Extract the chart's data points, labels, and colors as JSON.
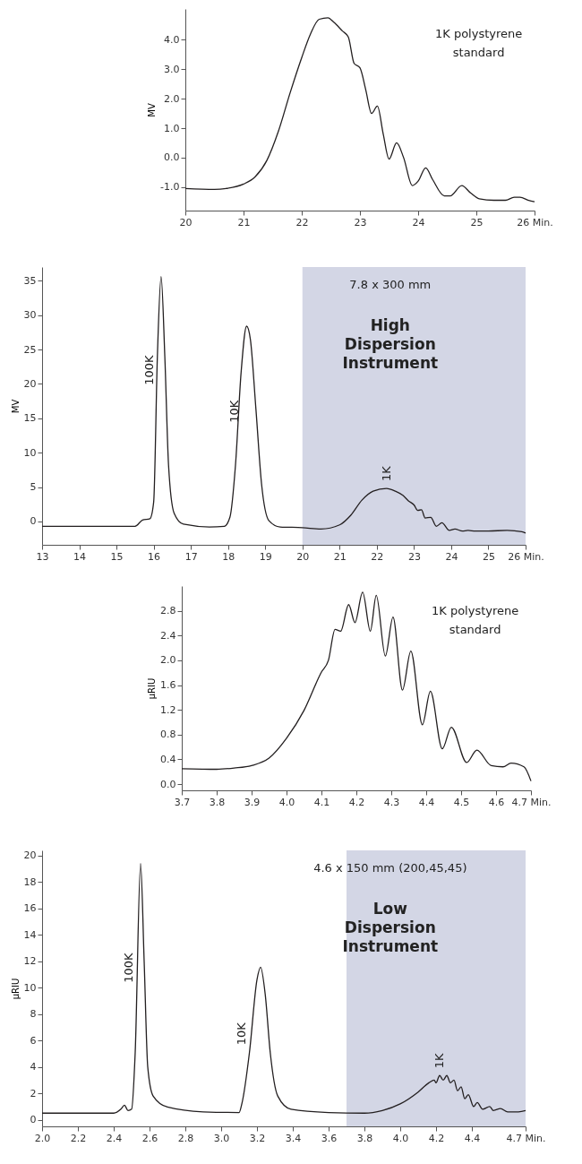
{
  "chart_data": [
    {
      "type": "line",
      "ylabel": "MV",
      "xlim": [
        20,
        26
      ],
      "ylim": [
        -1.8,
        5.05
      ],
      "grid": false,
      "xticks": [
        20,
        21,
        22,
        23,
        24,
        25,
        {
          "value": 26,
          "label": "26 Min."
        }
      ],
      "yticks": [
        {
          "value": -1,
          "label": "-1.0"
        },
        {
          "value": 0,
          "label": "0.0"
        },
        {
          "value": 1,
          "label": "1.0"
        },
        {
          "value": 2,
          "label": "2.0"
        },
        {
          "value": 3,
          "label": "3.0"
        },
        {
          "value": 4,
          "label": "4.0"
        }
      ],
      "x": [
        20,
        20.5,
        20.7,
        21,
        21.2,
        21.4,
        21.6,
        21.8,
        22,
        22.15,
        22.3,
        22.45,
        22.55,
        22.7,
        22.8,
        22.9,
        23.0,
        23.1,
        23.2,
        23.3,
        23.4,
        23.5,
        23.63,
        23.75,
        23.9,
        24,
        24.13,
        24.25,
        24.45,
        24.55,
        24.75,
        24.9,
        25.05,
        25.3,
        25.5,
        25.65,
        25.75,
        25.9,
        26
      ],
      "series": [
        {
          "color": "#231f20",
          "values": [
            -1.05,
            -1.08,
            -1.05,
            -0.9,
            -0.65,
            -0.1,
            0.9,
            2.2,
            3.4,
            4.2,
            4.7,
            4.75,
            4.6,
            4.3,
            4.1,
            3.2,
            3.05,
            2.3,
            1.5,
            1.75,
            0.8,
            -0.05,
            0.5,
            0.0,
            -0.95,
            -0.8,
            -0.35,
            -0.75,
            -1.3,
            -1.3,
            -0.95,
            -1.2,
            -1.4,
            -1.45,
            -1.45,
            -1.35,
            -1.35,
            -1.45,
            -1.5
          ]
        }
      ],
      "annotations": [
        "1K polystyrene standard"
      ]
    },
    {
      "type": "line",
      "ylabel": "MV",
      "xlim": [
        13,
        26
      ],
      "ylim": [
        -3.4,
        37
      ],
      "grid": false,
      "xticks": [
        13,
        14,
        15,
        16,
        17,
        18,
        19,
        20,
        21,
        22,
        23,
        24,
        25,
        {
          "value": 26,
          "label": "26 Min."
        }
      ],
      "yticks": [
        0,
        5,
        10,
        15,
        20,
        25,
        30,
        35
      ],
      "x": [
        13,
        15,
        15.5,
        15.7,
        15.9,
        16.0,
        16.1,
        16.2,
        16.3,
        16.4,
        16.55,
        16.8,
        17.5,
        17.9,
        18.05,
        18.2,
        18.35,
        18.5,
        18.6,
        18.75,
        18.9,
        19.1,
        19.4,
        20,
        20.5,
        21,
        21.3,
        21.6,
        21.9,
        22.26,
        22.5,
        22.7,
        22.85,
        23.0,
        23.1,
        23.2,
        23.3,
        23.45,
        23.6,
        23.75,
        23.95,
        24.1,
        24.3,
        24.45,
        24.65,
        25,
        25.5,
        25.9,
        26
      ],
      "series": [
        {
          "color": "#231f20",
          "values": [
            -0.7,
            -0.7,
            -0.7,
            0.2,
            0.4,
            2.8,
            24,
            35.6,
            24,
            8.2,
            1.2,
            -0.4,
            -0.8,
            -0.7,
            0.6,
            8.2,
            21.6,
            28.4,
            26.5,
            16.3,
            5.5,
            0.1,
            -0.8,
            -0.9,
            -1.1,
            -0.5,
            0.9,
            3.1,
            4.4,
            4.8,
            4.4,
            3.8,
            3.0,
            2.4,
            1.6,
            1.7,
            0.5,
            0.6,
            -0.7,
            -0.2,
            -1.3,
            -1.1,
            -1.4,
            -1.3,
            -1.4,
            -1.4,
            -1.3,
            -1.5,
            -1.7
          ]
        }
      ],
      "bands": [
        {
          "axis": "x",
          "from": 20,
          "to": 26,
          "color": "#d3d6e5"
        }
      ],
      "annotations": [
        "7.8 x 300 mm",
        "High Dispersion Instrument",
        {
          "text": "100K",
          "x": 16.05,
          "y": 22
        },
        {
          "text": "10K",
          "x": 18.35,
          "y": 16
        },
        {
          "text": "1K",
          "x": 22.26,
          "y": 4.8
        }
      ]
    },
    {
      "type": "line",
      "ylabel": "µRIU",
      "xlim": [
        3.7,
        4.7
      ],
      "ylim": [
        -0.1,
        3.2
      ],
      "grid": false,
      "xticks": [
        3.7,
        3.8,
        3.9,
        {
          "value": 4,
          "label": "4.0"
        },
        4.1,
        4.2,
        4.3,
        4.4,
        4.5,
        4.6,
        {
          "value": 4.7,
          "label": "4.7 Min."
        }
      ],
      "yticks": [
        {
          "value": 0,
          "label": "0.0"
        },
        0.4,
        0.8,
        1.2,
        1.6,
        {
          "value": 2,
          "label": "2.0"
        },
        2.4,
        2.8
      ],
      "x": [
        3.7,
        3.8,
        3.85,
        3.9,
        3.95,
        4.0,
        4.05,
        4.1,
        4.12,
        4.139,
        4.155,
        4.178,
        4.196,
        4.218,
        4.24,
        4.257,
        4.283,
        4.305,
        4.332,
        4.356,
        4.389,
        4.412,
        4.446,
        4.472,
        4.516,
        4.545,
        4.586,
        4.62,
        4.643,
        4.68,
        4.7
      ],
      "series": [
        {
          "color": "#231f20",
          "values": [
            0.25,
            0.24,
            0.26,
            0.3,
            0.42,
            0.74,
            1.19,
            1.81,
            2.0,
            2.5,
            2.47,
            2.9,
            2.61,
            3.1,
            2.47,
            3.05,
            2.07,
            2.7,
            1.52,
            2.15,
            0.96,
            1.5,
            0.57,
            0.92,
            0.35,
            0.55,
            0.3,
            0.28,
            0.34,
            0.28,
            0.05
          ]
        }
      ],
      "annotations": [
        "1K polystyrene standard"
      ]
    },
    {
      "type": "line",
      "ylabel": "µRIU",
      "xlim": [
        2,
        4.7
      ],
      "ylim": [
        -0.5,
        20.4
      ],
      "grid": false,
      "xticks": [
        {
          "value": 2,
          "label": "2.0"
        },
        2.2,
        2.4,
        2.6,
        2.8,
        {
          "value": 3,
          "label": "3.0"
        },
        3.2,
        3.4,
        3.6,
        3.8,
        {
          "value": 4,
          "label": "4.0"
        },
        4.2,
        4.4,
        {
          "value": 4.7,
          "label": "4.7 Min."
        }
      ],
      "yticks": [
        0,
        2,
        4,
        6,
        8,
        10,
        12,
        14,
        16,
        18,
        20
      ],
      "x": [
        2.0,
        2.4,
        2.44,
        2.46,
        2.48,
        2.5,
        2.52,
        2.55,
        2.57,
        2.59,
        2.62,
        2.7,
        2.9,
        3.1,
        3.116,
        3.158,
        3.2,
        3.22,
        3.246,
        3.274,
        3.316,
        3.39,
        3.6,
        3.8,
        3.9,
        4.0,
        4.1,
        4.16,
        4.19,
        4.2,
        4.22,
        4.24,
        4.26,
        4.28,
        4.3,
        4.32,
        4.34,
        4.36,
        4.38,
        4.41,
        4.43,
        4.46,
        4.5,
        4.52,
        4.56,
        4.6,
        4.66,
        4.7
      ],
      "series": [
        {
          "color": "#231f20",
          "values": [
            0.5,
            0.5,
            0.8,
            1.1,
            0.7,
            0.8,
            5.1,
            19.4,
            12,
            4,
            1.8,
            0.96,
            0.6,
            0.55,
            1.24,
            5.1,
            10.6,
            11.55,
            9.5,
            5.1,
            1.8,
            0.8,
            0.55,
            0.5,
            0.7,
            1.2,
            2.1,
            2.8,
            3.0,
            2.8,
            3.35,
            3.0,
            3.35,
            2.8,
            3.0,
            2.2,
            2.5,
            1.6,
            1.9,
            1.0,
            1.3,
            0.8,
            1.0,
            0.7,
            0.85,
            0.6,
            0.6,
            0.7
          ]
        }
      ],
      "bands": [
        {
          "axis": "x",
          "from": 3.7,
          "to": 4.7,
          "color": "#d3d6e5"
        }
      ],
      "annotations": [
        "4.6 x 150 mm (200,45,45)",
        "Low Dispersion Instrument",
        {
          "text": "100K",
          "x": 2.52,
          "y": 11.5
        },
        {
          "text": "10K",
          "x": 3.15,
          "y": 6.5
        },
        {
          "text": "1K",
          "x": 4.22,
          "y": 3.35
        }
      ]
    }
  ]
}
